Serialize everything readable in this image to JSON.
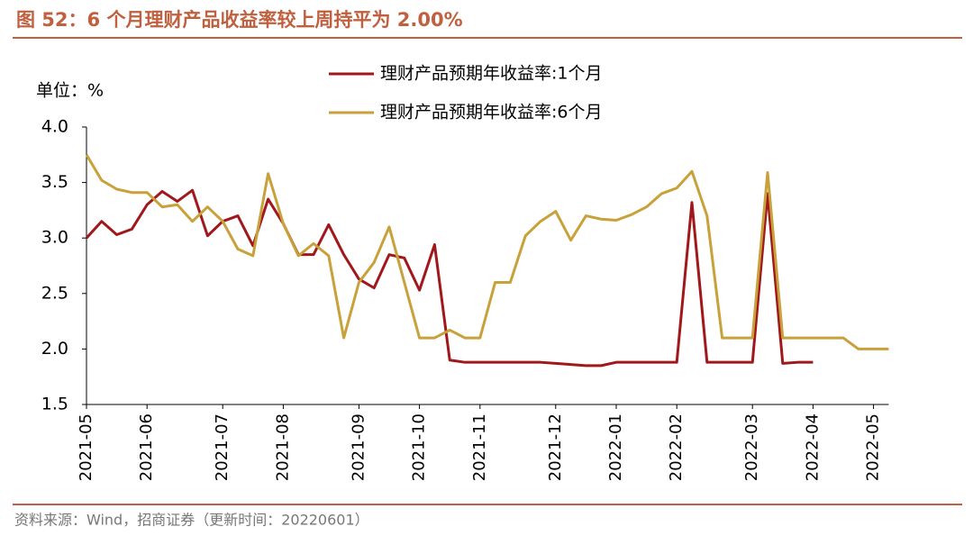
{
  "chart_data": {
    "type": "line",
    "title": "图 52：6 个月理财产品收益率较上周持平为 2.00%",
    "unit_label": "单位：%",
    "source": "资料来源：Wind，招商证券（更新时间：20220601）",
    "categories": [
      "2021-05",
      null,
      null,
      null,
      "2021-06",
      null,
      null,
      null,
      null,
      "2021-07",
      null,
      null,
      null,
      "2021-08",
      null,
      null,
      null,
      null,
      "2021-09",
      null,
      null,
      null,
      "2021-10",
      null,
      null,
      null,
      "2021-11",
      null,
      null,
      null,
      null,
      "2021-12",
      null,
      null,
      null,
      "2022-01",
      null,
      null,
      null,
      "2022-02",
      null,
      null,
      null,
      null,
      "2022-03",
      null,
      null,
      null,
      "2022-04",
      null,
      null,
      null,
      "2022-05",
      null
    ],
    "series": [
      {
        "name": "理财产品预期年收益率:1个月",
        "color": "#a0171c",
        "values": [
          3.0,
          3.15,
          3.03,
          3.08,
          3.3,
          3.42,
          3.33,
          3.43,
          3.02,
          3.15,
          3.2,
          2.93,
          3.35,
          3.13,
          2.85,
          2.85,
          3.12,
          2.85,
          2.63,
          2.55,
          2.85,
          2.82,
          2.53,
          2.94,
          1.9,
          1.88,
          1.88,
          1.88,
          1.88,
          1.88,
          1.88,
          1.87,
          1.86,
          1.85,
          1.85,
          1.88,
          1.88,
          1.88,
          1.88,
          1.88,
          3.32,
          1.88,
          1.88,
          1.88,
          1.88,
          3.4,
          1.87,
          1.88,
          1.88,
          null,
          null,
          null,
          null,
          null
        ]
      },
      {
        "name": "理财产品预期年收益率:6个月",
        "color": "#c9a13a",
        "values": [
          3.75,
          3.52,
          3.44,
          3.41,
          3.41,
          3.28,
          3.3,
          3.15,
          3.28,
          3.15,
          2.9,
          2.84,
          3.58,
          3.13,
          2.84,
          2.95,
          2.84,
          2.1,
          2.6,
          2.78,
          3.1,
          2.6,
          2.1,
          2.1,
          2.17,
          2.1,
          2.1,
          2.6,
          2.6,
          3.02,
          3.15,
          3.24,
          2.98,
          3.2,
          3.17,
          3.16,
          3.21,
          3.28,
          3.4,
          3.45,
          3.6,
          3.2,
          2.1,
          2.1,
          2.1,
          3.59,
          2.1,
          2.1,
          2.1,
          2.1,
          2.1,
          2.0,
          2.0,
          2.0
        ]
      }
    ],
    "ylim": [
      1.5,
      4.0
    ],
    "yticks": [
      {
        "value": 1.5,
        "label": "1.5"
      },
      {
        "value": 2,
        "label": "2.0"
      },
      {
        "value": 2.5,
        "label": "2.5"
      },
      {
        "value": 3,
        "label": "3.0"
      },
      {
        "value": 3.5,
        "label": "3.5"
      },
      {
        "value": 4,
        "label": "4.0"
      }
    ],
    "title_color": "#c0603f"
  }
}
